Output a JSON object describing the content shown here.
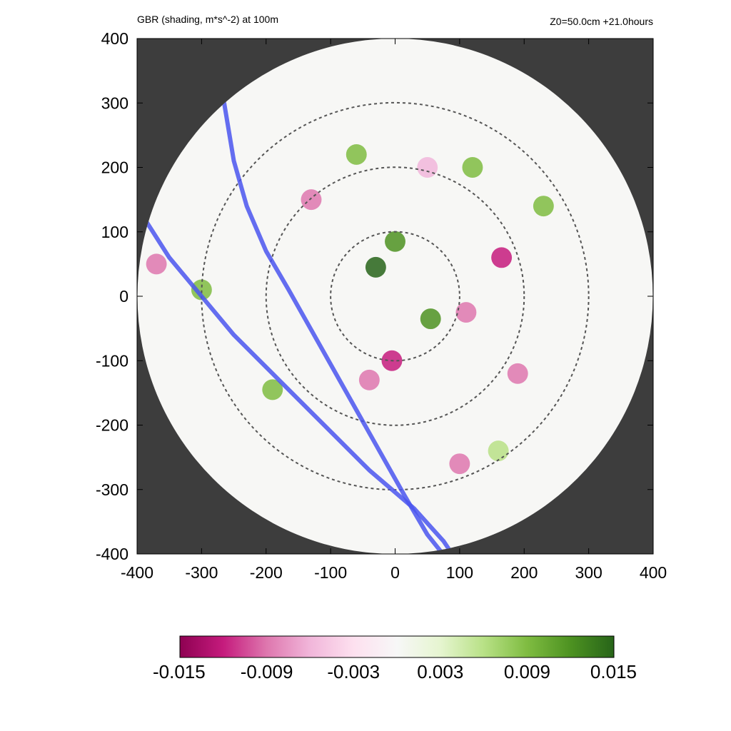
{
  "chart_data": {
    "type": "heatmap",
    "title": "GBR (shading, m*s^-2) at 100m",
    "subtitle": "Z0=50.0cm  +21.0hours",
    "xlabel": "",
    "ylabel": "",
    "xlim": [
      -400,
      400
    ],
    "ylim": [
      -400,
      400
    ],
    "x_ticks": [
      "-400",
      "-300",
      "-200",
      "-100",
      "0",
      "100",
      "200",
      "300",
      "400"
    ],
    "y_ticks": [
      "400",
      "300",
      "200",
      "100",
      "0",
      "-100",
      "-200",
      "-300",
      "-400"
    ],
    "domain_radius": 400,
    "range_rings_radius": [
      100,
      200,
      300
    ],
    "colorbar": {
      "min": -0.015,
      "max": 0.015,
      "tick_labels": [
        "-0.015",
        "-0.009",
        "-0.003",
        "0.003",
        "0.009",
        "0.015"
      ],
      "tick_values": [
        -0.015,
        -0.009,
        -0.003,
        0.003,
        0.009,
        0.015
      ],
      "colors": [
        "#8e0152",
        "#c51b7d",
        "#de77ae",
        "#f1b6da",
        "#fde0ef",
        "#f7f7f7",
        "#e6f5d0",
        "#b8e186",
        "#7fbc41",
        "#4d9221",
        "#276419"
      ]
    },
    "series": [
      {
        "color": "#4a55ee",
        "x": [
          -265,
          -250,
          -230,
          -200,
          -165,
          -120,
          -75,
          -30,
          15,
          50,
          70
        ],
        "y": [
          300,
          210,
          140,
          70,
          10,
          -70,
          -150,
          -230,
          -310,
          -370,
          -395
        ]
      },
      {
        "color": "#4a55ee",
        "x": [
          -385,
          -350,
          -300,
          -250,
          -180,
          -110,
          -40,
          30,
          75,
          85
        ],
        "y": [
          115,
          60,
          0,
          -60,
          -130,
          -200,
          -270,
          -330,
          -380,
          -395
        ]
      }
    ],
    "field_features": [
      {
        "x": -30,
        "y": 45,
        "value": 0.015
      },
      {
        "x": 0,
        "y": 85,
        "value": 0.012
      },
      {
        "x": 55,
        "y": -35,
        "value": 0.012
      },
      {
        "x": 165,
        "y": 60,
        "value": -0.012
      },
      {
        "x": -5,
        "y": -100,
        "value": -0.012
      },
      {
        "x": -40,
        "y": -130,
        "value": -0.009
      },
      {
        "x": 110,
        "y": -25,
        "value": -0.009
      },
      {
        "x": -190,
        "y": -145,
        "value": 0.009
      },
      {
        "x": -130,
        "y": 150,
        "value": -0.009
      },
      {
        "x": 120,
        "y": 200,
        "value": 0.009
      },
      {
        "x": 230,
        "y": 140,
        "value": 0.009
      },
      {
        "x": -300,
        "y": 10,
        "value": 0.009
      },
      {
        "x": 190,
        "y": -120,
        "value": -0.009
      },
      {
        "x": 100,
        "y": -260,
        "value": -0.009
      },
      {
        "x": 160,
        "y": -240,
        "value": 0.006
      },
      {
        "x": -60,
        "y": 220,
        "value": 0.009
      },
      {
        "x": -370,
        "y": 50,
        "value": -0.009
      },
      {
        "x": 50,
        "y": 200,
        "value": -0.006
      }
    ]
  }
}
